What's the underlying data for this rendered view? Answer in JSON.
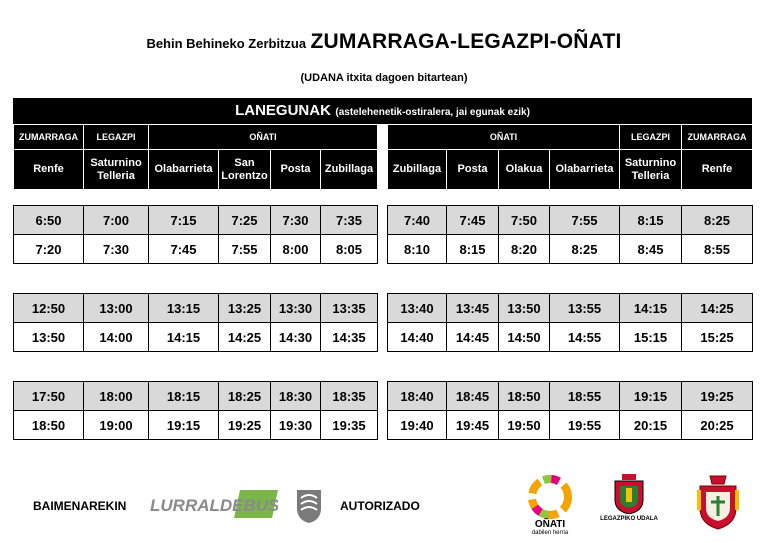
{
  "header": {
    "title_small": "Behin Behineko Zerbitzua",
    "title_big": "ZUMARRAGA-LEGAZPI-OÑATI",
    "subtitle": "(UDANA itxita dagoen bitartean)",
    "bar_main": "LANEGUNAK",
    "bar_sub": "(astelehenetik-ostiralera, jai egunak ezik)"
  },
  "left_header": {
    "towns": [
      "ZUMARRAGA",
      "LEGAZPI",
      "OÑATI"
    ],
    "stops": [
      [
        "Renfe"
      ],
      [
        "Saturnino",
        "Telleria"
      ],
      [
        "Olabarrieta"
      ],
      [
        "San",
        "Lorentzo"
      ],
      [
        "Posta"
      ],
      [
        "Zubillaga"
      ]
    ]
  },
  "right_header": {
    "towns": [
      "OÑATI",
      "LEGAZPI",
      "ZUMARRAGA"
    ],
    "stops": [
      [
        "Zubillaga"
      ],
      [
        "Posta"
      ],
      [
        "Olakua"
      ],
      [
        "Olabarrieta"
      ],
      [
        "Saturnino",
        "Telleria"
      ],
      [
        "Renfe"
      ]
    ]
  },
  "left_times": [
    [
      [
        "6:50",
        "7:00",
        "7:15",
        "7:25",
        "7:30",
        "7:35"
      ],
      [
        "7:20",
        "7:30",
        "7:45",
        "7:55",
        "8:00",
        "8:05"
      ]
    ],
    [
      [
        "12:50",
        "13:00",
        "13:15",
        "13:25",
        "13:30",
        "13:35"
      ],
      [
        "13:50",
        "14:00",
        "14:15",
        "14:25",
        "14:30",
        "14:35"
      ]
    ],
    [
      [
        "17:50",
        "18:00",
        "18:15",
        "18:25",
        "18:30",
        "18:35"
      ],
      [
        "18:50",
        "19:00",
        "19:15",
        "19:25",
        "19:30",
        "19:35"
      ]
    ]
  ],
  "right_times": [
    [
      [
        "7:40",
        "7:45",
        "7:50",
        "7:55",
        "8:15",
        "8:25"
      ],
      [
        "8:10",
        "8:15",
        "8:20",
        "8:25",
        "8:45",
        "8:55"
      ]
    ],
    [
      [
        "13:40",
        "13:45",
        "13:50",
        "13:55",
        "14:15",
        "14:25"
      ],
      [
        "14:40",
        "14:45",
        "14:50",
        "14:55",
        "15:15",
        "15:25"
      ]
    ],
    [
      [
        "18:40",
        "18:45",
        "18:50",
        "18:55",
        "19:15",
        "19:25"
      ],
      [
        "19:40",
        "19:45",
        "19:50",
        "19:55",
        "20:15",
        "20:25"
      ]
    ]
  ],
  "footer": {
    "left_text": "BAIMENAREKIN",
    "right_text": "AUTORIZADO",
    "logo_lurraldebus": "LURRALDEBUS",
    "logo_onati": "OÑATI",
    "logo_onati_sub": "dabilen herria",
    "logo_legazpi": "LEGAZPIKO UDALA"
  },
  "colors": {
    "header_bg": "#000000",
    "row_shaded": "#d9d9d9",
    "lurraldebus_green": "#7ab648"
  }
}
